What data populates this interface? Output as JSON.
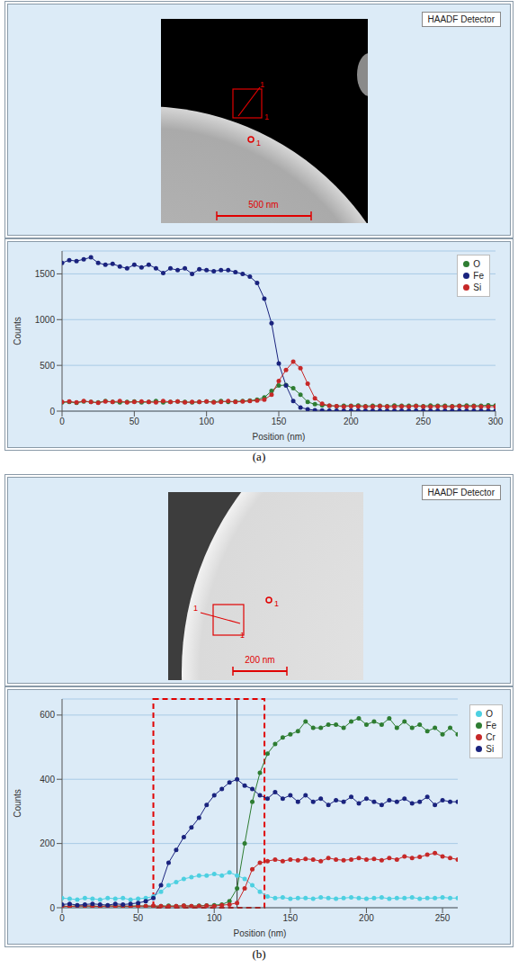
{
  "panel_labels": [
    "(a)",
    "(b)"
  ],
  "images": [
    {
      "detector_label": "HAADF Detector",
      "scale_bar_label": "500 nm",
      "marker_labels": [
        "1",
        "1",
        "1"
      ]
    },
    {
      "detector_label": "HAADF Detector",
      "scale_bar_label": "200 nm",
      "marker_labels": [
        "1",
        "1",
        "1"
      ]
    }
  ],
  "chart_data": [
    {
      "type": "line",
      "x_label": "Position (nm)",
      "y_label": "Counts",
      "x": [
        0,
        5,
        10,
        15,
        20,
        25,
        30,
        35,
        40,
        45,
        50,
        55,
        60,
        65,
        70,
        75,
        80,
        85,
        90,
        95,
        100,
        105,
        110,
        115,
        120,
        125,
        130,
        135,
        140,
        145,
        150,
        155,
        160,
        165,
        170,
        175,
        180,
        185,
        190,
        195,
        200,
        205,
        210,
        215,
        220,
        225,
        230,
        235,
        240,
        245,
        250,
        255,
        260,
        265,
        270,
        275,
        280,
        285,
        290,
        295,
        300
      ],
      "xlim": [
        0,
        300
      ],
      "xticks": [
        0,
        50,
        100,
        150,
        200,
        250,
        300
      ],
      "ylim": [
        0,
        1750
      ],
      "yticks": [
        0,
        500,
        1000,
        1500
      ],
      "grid": true,
      "legend": "upper right",
      "marker": "circle",
      "line_style": "solid",
      "series": [
        {
          "name": "O",
          "color": "#2e7d32",
          "values": [
            95,
            100,
            90,
            105,
            100,
            95,
            110,
            100,
            95,
            100,
            105,
            95,
            100,
            110,
            95,
            100,
            105,
            100,
            95,
            100,
            105,
            100,
            110,
            100,
            105,
            110,
            115,
            125,
            150,
            220,
            280,
            285,
            250,
            180,
            100,
            75,
            65,
            60,
            55,
            60,
            58,
            62,
            55,
            60,
            58,
            55,
            62,
            60,
            58,
            60,
            55,
            62,
            60,
            58,
            55,
            60,
            62,
            58,
            60,
            65,
            62
          ]
        },
        {
          "name": "Fe",
          "color": "#1a237e",
          "values": [
            1620,
            1650,
            1640,
            1660,
            1680,
            1620,
            1600,
            1610,
            1580,
            1560,
            1600,
            1570,
            1600,
            1560,
            1510,
            1560,
            1540,
            1560,
            1500,
            1550,
            1540,
            1530,
            1540,
            1540,
            1520,
            1500,
            1470,
            1400,
            1230,
            960,
            520,
            280,
            110,
            40,
            20,
            10,
            8,
            5,
            6,
            5,
            4,
            5,
            6,
            5,
            4,
            5,
            5,
            6,
            4,
            5,
            5,
            4,
            6,
            5,
            5,
            4,
            5,
            6,
            5,
            4,
            5
          ]
        },
        {
          "name": "Si",
          "color": "#c62828",
          "values": [
            100,
            105,
            95,
            110,
            100,
            90,
            105,
            100,
            110,
            95,
            100,
            105,
            100,
            95,
            110,
            100,
            105,
            95,
            100,
            100,
            105,
            95,
            100,
            110,
            100,
            105,
            110,
            115,
            125,
            180,
            330,
            450,
            540,
            470,
            300,
            140,
            80,
            60,
            55,
            50,
            55,
            52,
            48,
            50,
            55,
            50,
            48,
            52,
            50,
            55,
            50,
            48,
            52,
            50,
            48,
            55,
            50,
            52,
            50,
            48,
            50
          ]
        }
      ]
    },
    {
      "type": "line",
      "x_label": "Position (nm)",
      "y_label": "Counts",
      "x": [
        0,
        5,
        10,
        15,
        20,
        25,
        30,
        35,
        40,
        45,
        50,
        55,
        60,
        65,
        70,
        75,
        80,
        85,
        90,
        95,
        100,
        105,
        110,
        115,
        120,
        125,
        130,
        135,
        140,
        145,
        150,
        155,
        160,
        165,
        170,
        175,
        180,
        185,
        190,
        195,
        200,
        205,
        210,
        215,
        220,
        225,
        230,
        235,
        240,
        245,
        250,
        255,
        260
      ],
      "xlim": [
        0,
        260
      ],
      "xticks": [
        0,
        50,
        100,
        150,
        200,
        250
      ],
      "ylim": [
        0,
        650
      ],
      "yticks": [
        0,
        200,
        400,
        600
      ],
      "grid": true,
      "legend": "right",
      "marker": "circle",
      "line_style": "solid",
      "cursor_x": 115,
      "highlight_x": [
        60,
        133
      ],
      "series": [
        {
          "name": "O",
          "color": "#4dd0e1",
          "values": [
            30,
            28,
            25,
            30,
            28,
            25,
            30,
            28,
            30,
            25,
            28,
            30,
            35,
            50,
            70,
            80,
            90,
            95,
            100,
            100,
            105,
            100,
            110,
            100,
            90,
            70,
            50,
            35,
            30,
            32,
            28,
            30,
            30,
            28,
            32,
            30,
            28,
            30,
            32,
            30,
            28,
            30,
            32,
            28,
            30,
            30,
            32,
            28,
            30,
            30,
            32,
            30,
            30
          ]
        },
        {
          "name": "Fe",
          "color": "#2e7d32",
          "values": [
            5,
            4,
            6,
            5,
            5,
            4,
            6,
            5,
            4,
            5,
            6,
            5,
            4,
            5,
            6,
            5,
            6,
            5,
            6,
            7,
            8,
            10,
            20,
            60,
            200,
            330,
            420,
            480,
            510,
            530,
            540,
            550,
            580,
            560,
            560,
            570,
            570,
            560,
            580,
            590,
            570,
            580,
            570,
            590,
            560,
            580,
            560,
            570,
            550,
            560,
            540,
            560,
            540
          ]
        },
        {
          "name": "Cr",
          "color": "#c62828",
          "values": [
            5,
            4,
            5,
            6,
            5,
            4,
            5,
            5,
            6,
            4,
            5,
            5,
            6,
            5,
            4,
            5,
            6,
            5,
            5,
            6,
            5,
            8,
            10,
            15,
            60,
            120,
            140,
            145,
            150,
            145,
            150,
            148,
            152,
            150,
            145,
            155,
            150,
            148,
            150,
            155,
            150,
            152,
            148,
            155,
            150,
            160,
            155,
            158,
            165,
            170,
            160,
            155,
            150
          ]
        },
        {
          "name": "Si",
          "color": "#1a237e",
          "values": [
            10,
            12,
            8,
            10,
            12,
            10,
            8,
            12,
            10,
            12,
            15,
            20,
            30,
            70,
            140,
            180,
            220,
            250,
            280,
            320,
            350,
            370,
            390,
            400,
            380,
            370,
            350,
            340,
            360,
            340,
            350,
            330,
            350,
            330,
            340,
            320,
            335,
            330,
            345,
            325,
            340,
            330,
            320,
            335,
            330,
            340,
            325,
            330,
            345,
            320,
            335,
            330,
            330
          ]
        }
      ]
    }
  ]
}
